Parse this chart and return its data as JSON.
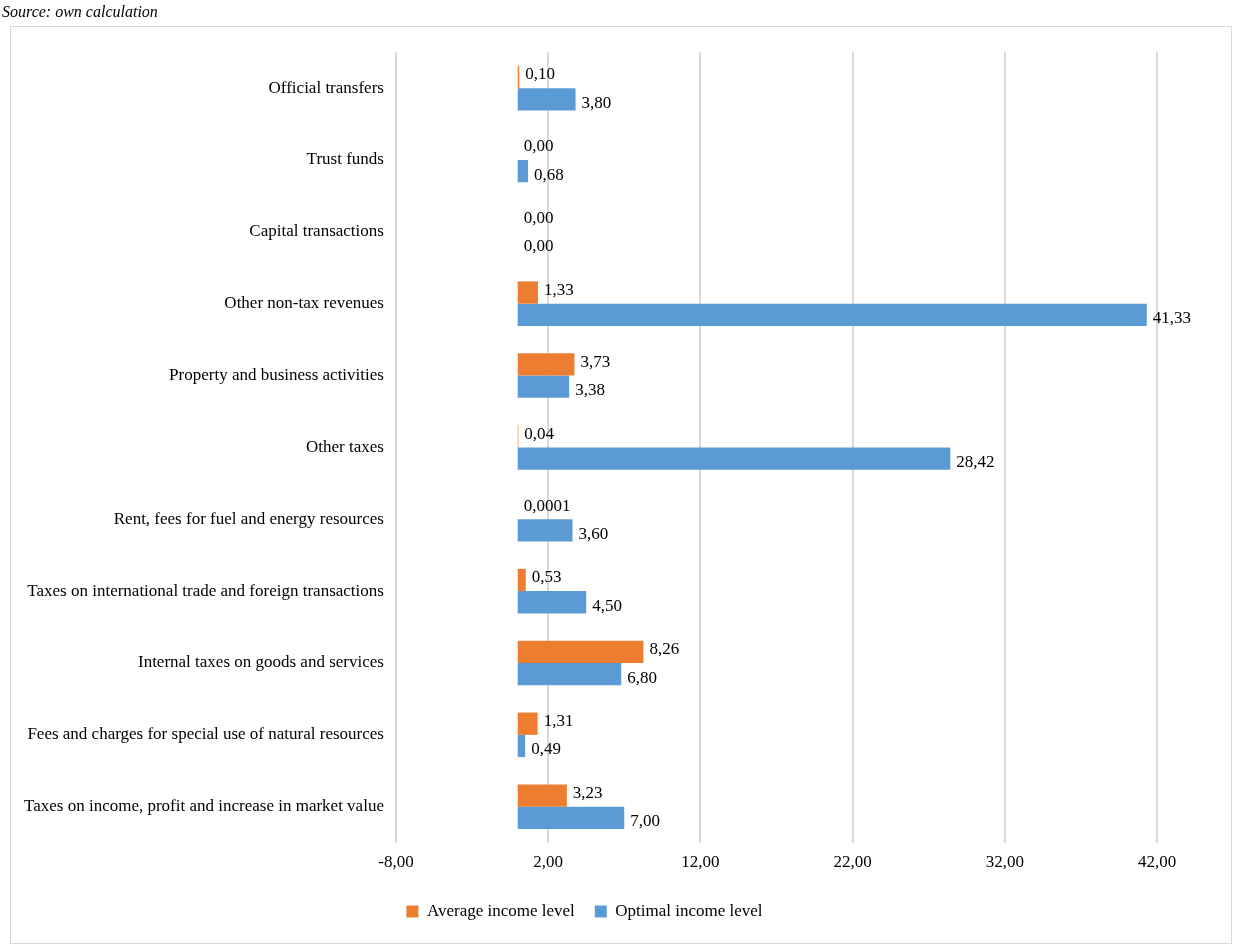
{
  "chart_data": {
    "type": "bar",
    "orientation": "horizontal",
    "annotations": [
      "Source: own calculation"
    ],
    "categories": [
      "Official transfers",
      "Trust funds",
      "Capital transactions",
      "Other non-tax revenues",
      "Property and business activities",
      "Other taxes",
      "Rent, fees for fuel and energy resources",
      "Taxes on international trade and foreign transactions",
      "Internal taxes on goods and services",
      "Fees and charges for special use of natural resources",
      "Taxes on income, profit and increase in market value"
    ],
    "series": [
      {
        "name": "Average income level",
        "color": "#ed7d31",
        "values": [
          0.1,
          0.0,
          0.0,
          1.33,
          3.73,
          0.04,
          0.0001,
          0.53,
          8.26,
          1.31,
          3.23
        ],
        "value_labels": [
          "0,10",
          "0,00",
          "0,00",
          "1,33",
          "3,73",
          "0,04",
          "0,0001",
          "0,53",
          "8,26",
          "1,31",
          "3,23"
        ]
      },
      {
        "name": "Optimal income level",
        "color": "#5b9bd5",
        "values": [
          3.8,
          0.68,
          0.0,
          41.33,
          3.38,
          28.42,
          3.6,
          4.5,
          6.8,
          0.49,
          7.0
        ],
        "value_labels": [
          "3,80",
          "0,68",
          "0,00",
          "41,33",
          "3,38",
          "28,42",
          "3,60",
          "4,50",
          "6,80",
          "0,49",
          "7,00"
        ]
      }
    ],
    "xlim": [
      -8,
      42
    ],
    "xticks": [
      {
        "value": -8,
        "label": "-8,00"
      },
      {
        "value": 2,
        "label": "2,00"
      },
      {
        "value": 12,
        "label": "12,00"
      },
      {
        "value": 22,
        "label": "22,00"
      },
      {
        "value": 32,
        "label": "32,00"
      },
      {
        "value": 42,
        "label": "42,00"
      }
    ],
    "grid": "x",
    "legend": "bottom"
  }
}
